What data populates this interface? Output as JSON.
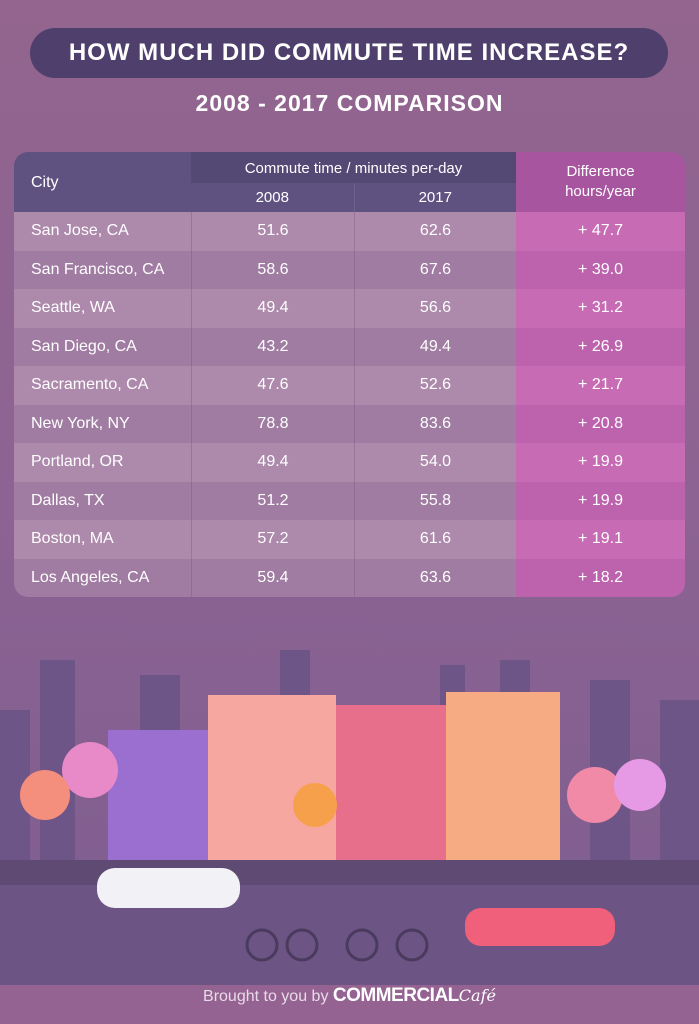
{
  "title": "HOW MUCH DID COMMUTE TIME INCREASE?",
  "subtitle": "2008 - 2017 COMPARISON",
  "table": {
    "header": {
      "city": "City",
      "group": "Commute time / minutes per-day",
      "y2008": "2008",
      "y2017": "2017",
      "diff_line1": "Difference",
      "diff_line2": "hours/year"
    },
    "rows": [
      {
        "city": "San Jose, CA",
        "y2008": "51.6",
        "y2017": "62.6",
        "diff": "+ 47.7"
      },
      {
        "city": "San Francisco, CA",
        "y2008": "58.6",
        "y2017": "67.6",
        "diff": "+ 39.0"
      },
      {
        "city": "Seattle, WA",
        "y2008": "49.4",
        "y2017": "56.6",
        "diff": "+ 31.2"
      },
      {
        "city": "San Diego, CA",
        "y2008": "43.2",
        "y2017": "49.4",
        "diff": "+ 26.9"
      },
      {
        "city": "Sacramento, CA",
        "y2008": "47.6",
        "y2017": "52.6",
        "diff": "+ 21.7"
      },
      {
        "city": "New York, NY",
        "y2008": "78.8",
        "y2017": "83.6",
        "diff": "+ 20.8"
      },
      {
        "city": "Portland, OR",
        "y2008": "49.4",
        "y2017": "54.0",
        "diff": "+ 19.9"
      },
      {
        "city": "Dallas, TX",
        "y2008": "51.2",
        "y2017": "55.8",
        "diff": "+ 19.9"
      },
      {
        "city": "Boston, MA",
        "y2008": "57.2",
        "y2017": "61.6",
        "diff": "+ 19.1"
      },
      {
        "city": "Los Angeles, CA",
        "y2008": "59.4",
        "y2017": "63.6",
        "diff": "+ 18.2"
      }
    ]
  },
  "footer": {
    "prefix": "Brought to you by",
    "brand": "COMMERCIAL",
    "brand_script": "Café"
  }
}
